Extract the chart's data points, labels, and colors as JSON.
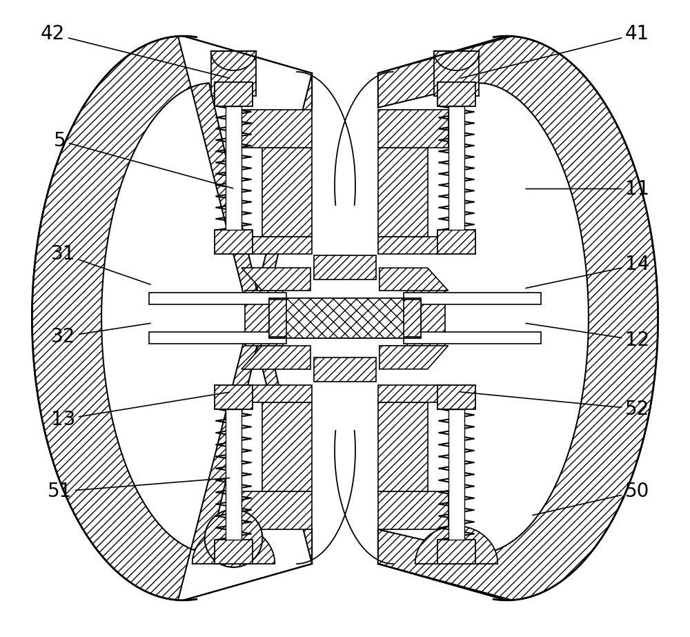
{
  "bg_color": "#ffffff",
  "line_color": "#000000",
  "figsize": [
    10.0,
    9.23
  ],
  "dpi": 100,
  "label_fontsize": 20,
  "annotations": [
    [
      "42",
      0.75,
      8.75,
      3.35,
      8.1
    ],
    [
      "5",
      0.85,
      7.2,
      3.4,
      6.5
    ],
    [
      "31",
      0.9,
      5.55,
      2.2,
      5.1
    ],
    [
      "32",
      0.9,
      4.35,
      2.2,
      4.55
    ],
    [
      "13",
      0.9,
      3.15,
      3.35,
      3.55
    ],
    [
      "51",
      0.85,
      2.1,
      3.35,
      2.3
    ],
    [
      "41",
      9.25,
      8.75,
      6.65,
      8.1
    ],
    [
      "11",
      9.25,
      6.5,
      7.6,
      6.5
    ],
    [
      "14",
      9.25,
      5.4,
      7.6,
      5.05
    ],
    [
      "12",
      9.25,
      4.3,
      7.6,
      4.55
    ],
    [
      "52",
      9.25,
      3.3,
      6.65,
      3.55
    ],
    [
      "50",
      9.25,
      2.1,
      7.7,
      1.75
    ]
  ]
}
